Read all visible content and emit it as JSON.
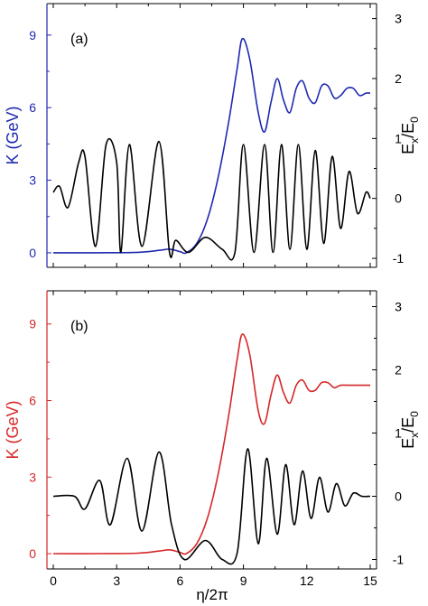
{
  "figure": {
    "xlabel": "η/2π"
  },
  "chart_data": [
    {
      "type": "line",
      "panel_label": "(a)",
      "xlim": [
        -0.3,
        15.3
      ],
      "xticks": [
        0,
        3,
        6,
        9,
        12,
        15
      ],
      "left_axis": {
        "label": "K (GeV)",
        "color": "#1f2ab0",
        "ylim": [
          -0.6,
          10.3
        ],
        "ticks": [
          0,
          3,
          6,
          9
        ]
      },
      "right_axis": {
        "label_main": "E",
        "label_sub1": "x",
        "label_mid": "/E",
        "label_sub2": "0",
        "color": "#000000",
        "ylim": [
          -1.15,
          3.25
        ],
        "ticks": [
          -1,
          0,
          1,
          2,
          3
        ]
      },
      "series": [
        {
          "axis": "left",
          "color": "#1f2ab0",
          "points": [
            [
              0,
              0
            ],
            [
              2,
              0
            ],
            [
              4,
              0.02
            ],
            [
              5,
              0.1
            ],
            [
              5.5,
              0.15
            ],
            [
              6,
              0.05
            ],
            [
              6.3,
              0
            ],
            [
              6.8,
              0.4
            ],
            [
              7.3,
              1.4
            ],
            [
              7.8,
              3.1
            ],
            [
              8.3,
              5.4
            ],
            [
              8.7,
              7.6
            ],
            [
              8.95,
              8.85
            ],
            [
              9.3,
              8.0
            ],
            [
              9.7,
              5.8
            ],
            [
              10.0,
              5.0
            ],
            [
              10.3,
              6.2
            ],
            [
              10.6,
              7.2
            ],
            [
              10.9,
              6.3
            ],
            [
              11.2,
              5.8
            ],
            [
              11.5,
              6.8
            ],
            [
              11.8,
              7.1
            ],
            [
              12.1,
              6.4
            ],
            [
              12.4,
              6.2
            ],
            [
              12.7,
              6.9
            ],
            [
              13.0,
              6.9
            ],
            [
              13.3,
              6.4
            ],
            [
              13.6,
              6.5
            ],
            [
              13.9,
              6.8
            ],
            [
              14.2,
              6.8
            ],
            [
              14.5,
              6.5
            ],
            [
              14.8,
              6.6
            ],
            [
              15.0,
              6.6
            ]
          ]
        },
        {
          "axis": "right",
          "color": "#000000",
          "points": [
            [
              0,
              0.1
            ],
            [
              0.3,
              0.2
            ],
            [
              0.7,
              -0.15
            ],
            [
              1.2,
              0.6
            ],
            [
              1.5,
              0.7
            ],
            [
              2.0,
              -0.8
            ],
            [
              2.5,
              0.9
            ],
            [
              3.0,
              0.6
            ],
            [
              3.2,
              -0.9
            ],
            [
              3.6,
              0.9
            ],
            [
              4.2,
              -0.8
            ],
            [
              5.0,
              0.95
            ],
            [
              5.5,
              -0.9
            ],
            [
              5.8,
              -0.7
            ],
            [
              6.4,
              -0.9
            ],
            [
              7.2,
              -0.65
            ],
            [
              8.0,
              -0.85
            ],
            [
              8.6,
              -0.9
            ],
            [
              9.0,
              0.9
            ],
            [
              9.5,
              -0.9
            ],
            [
              10.0,
              0.9
            ],
            [
              10.4,
              -0.9
            ],
            [
              10.8,
              0.9
            ],
            [
              11.2,
              -0.85
            ],
            [
              11.6,
              0.9
            ],
            [
              12.0,
              -0.85
            ],
            [
              12.4,
              0.8
            ],
            [
              12.8,
              -0.75
            ],
            [
              13.2,
              0.7
            ],
            [
              13.6,
              -0.5
            ],
            [
              14.0,
              0.45
            ],
            [
              14.4,
              -0.25
            ],
            [
              14.8,
              0.1
            ],
            [
              15.0,
              0
            ]
          ]
        }
      ]
    },
    {
      "type": "line",
      "panel_label": "(b)",
      "xlim": [
        -0.3,
        15.3
      ],
      "xticks": [
        0,
        3,
        6,
        9,
        12,
        15
      ],
      "xtick_labels": [
        "0",
        "3",
        "6",
        "9",
        "12",
        "15"
      ],
      "left_axis": {
        "label": "K (GeV)",
        "color": "#d62728",
        "ylim": [
          -0.6,
          10.3
        ],
        "ticks": [
          0,
          3,
          6,
          9
        ]
      },
      "right_axis": {
        "label_main": "E",
        "label_sub1": "x",
        "label_mid": "/E",
        "label_sub2": "0",
        "color": "#000000",
        "ylim": [
          -1.15,
          3.25
        ],
        "ticks": [
          -1,
          0,
          1,
          2,
          3
        ]
      },
      "series": [
        {
          "axis": "left",
          "color": "#d62728",
          "points": [
            [
              0,
              0
            ],
            [
              2,
              0
            ],
            [
              4,
              0.02
            ],
            [
              5,
              0.1
            ],
            [
              5.5,
              0.15
            ],
            [
              6,
              0.05
            ],
            [
              6.3,
              0
            ],
            [
              6.8,
              0.4
            ],
            [
              7.3,
              1.4
            ],
            [
              7.8,
              3.1
            ],
            [
              8.3,
              5.4
            ],
            [
              8.7,
              7.6
            ],
            [
              8.95,
              8.6
            ],
            [
              9.3,
              7.8
            ],
            [
              9.7,
              5.6
            ],
            [
              10.0,
              5.1
            ],
            [
              10.3,
              6.2
            ],
            [
              10.6,
              7.0
            ],
            [
              10.9,
              6.3
            ],
            [
              11.2,
              5.9
            ],
            [
              11.5,
              6.6
            ],
            [
              11.8,
              6.8
            ],
            [
              12.1,
              6.4
            ],
            [
              12.4,
              6.4
            ],
            [
              12.7,
              6.7
            ],
            [
              13.0,
              6.7
            ],
            [
              13.3,
              6.5
            ],
            [
              13.6,
              6.6
            ],
            [
              14.0,
              6.6
            ],
            [
              14.5,
              6.6
            ],
            [
              15.0,
              6.6
            ]
          ]
        },
        {
          "axis": "right",
          "color": "#000000",
          "points": [
            [
              0,
              0
            ],
            [
              1.0,
              0.0
            ],
            [
              1.5,
              -0.2
            ],
            [
              2.2,
              0.25
            ],
            [
              2.7,
              -0.45
            ],
            [
              3.5,
              0.6
            ],
            [
              4.2,
              -0.55
            ],
            [
              5.0,
              0.7
            ],
            [
              5.6,
              -0.45
            ],
            [
              6.2,
              -1.0
            ],
            [
              7.2,
              -0.7
            ],
            [
              8.0,
              -1.0
            ],
            [
              8.7,
              -0.9
            ],
            [
              9.2,
              0.75
            ],
            [
              9.7,
              -0.75
            ],
            [
              10.1,
              0.6
            ],
            [
              10.6,
              -0.6
            ],
            [
              11.0,
              0.5
            ],
            [
              11.4,
              -0.45
            ],
            [
              11.8,
              0.4
            ],
            [
              12.2,
              -0.35
            ],
            [
              12.6,
              0.3
            ],
            [
              13.0,
              -0.25
            ],
            [
              13.4,
              0.2
            ],
            [
              13.8,
              -0.15
            ],
            [
              14.2,
              0.05
            ],
            [
              14.6,
              0
            ],
            [
              15.0,
              0
            ]
          ]
        }
      ]
    }
  ]
}
